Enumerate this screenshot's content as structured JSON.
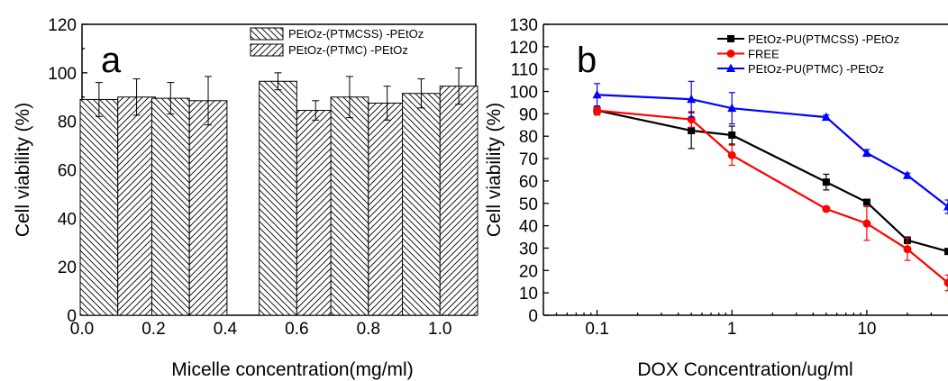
{
  "chart_data": [
    {
      "panel": "a",
      "type": "bar",
      "xlabel": "Micelle concentration(mg/ml)",
      "ylabel": "Cell viability (%)",
      "xlim": [
        0.0,
        1.1
      ],
      "ylim": [
        0,
        120
      ],
      "xticks": [
        "0.0",
        "0.2",
        "0.4",
        "0.6",
        "0.8",
        "1.0"
      ],
      "yticks": [
        "0",
        "20",
        "40",
        "60",
        "80",
        "100",
        "120"
      ],
      "grid": false,
      "legend_position": "top-right",
      "x": [
        0.1,
        0.3,
        0.6,
        0.8,
        1.0
      ],
      "series": [
        {
          "name": "PEtOz-(PTMCSS) -PEtOz",
          "pattern": "backslash-hatch",
          "values": [
            89,
            89.5,
            96.5,
            90,
            91.5
          ],
          "errors": [
            7,
            6.5,
            3.5,
            8.5,
            6
          ]
        },
        {
          "name": "PEtOz-(PTMC) -PEtOz",
          "pattern": "slash-hatch",
          "values": [
            90,
            88.5,
            84.5,
            87.5,
            94.5
          ],
          "errors": [
            7.5,
            10,
            4,
            7,
            7.5
          ]
        }
      ]
    },
    {
      "panel": "b",
      "type": "line",
      "xlabel": "DOX Concentration/ug/ml",
      "ylabel": "Cell  viability (%)",
      "xscale": "log",
      "xlim": [
        0.04,
        40
      ],
      "ylim": [
        0,
        130
      ],
      "xticks": [
        "0.1",
        "1",
        "10"
      ],
      "yticks": [
        "0",
        "10",
        "20",
        "30",
        "40",
        "50",
        "60",
        "70",
        "80",
        "90",
        "100",
        "110",
        "120",
        "130"
      ],
      "grid": false,
      "legend_position": "top-right",
      "x": [
        0.1,
        0.5,
        1,
        5,
        10,
        20,
        40
      ],
      "series": [
        {
          "name": "PEtOz-PU(PTMCSS) -PEtOz",
          "color": "#000000",
          "marker": "square",
          "values": [
            91.5,
            82.5,
            80.5,
            59.5,
            50.5,
            33.5,
            28.5
          ],
          "errors": [
            2,
            8,
            4,
            3.5,
            1,
            1.5,
            1
          ]
        },
        {
          "name": "FREE",
          "color": "#ff0000",
          "marker": "circle",
          "values": [
            91.5,
            87.5,
            71.5,
            47.5,
            41,
            29.5,
            14.5
          ],
          "errors": [
            2,
            3.5,
            4.5,
            1,
            7.5,
            5,
            3.5
          ]
        },
        {
          "name": "PEtOz-PU(PTMC) -PEtOz",
          "color": "#0000ff",
          "marker": "triangle",
          "values": [
            98.5,
            96.5,
            92.5,
            88.5,
            72.5,
            62.5,
            48.5
          ],
          "errors": [
            5,
            8,
            7,
            1,
            1.5,
            1,
            3
          ]
        }
      ]
    }
  ],
  "panels": {
    "a": {
      "letter": "a"
    },
    "b": {
      "letter": "b"
    }
  }
}
